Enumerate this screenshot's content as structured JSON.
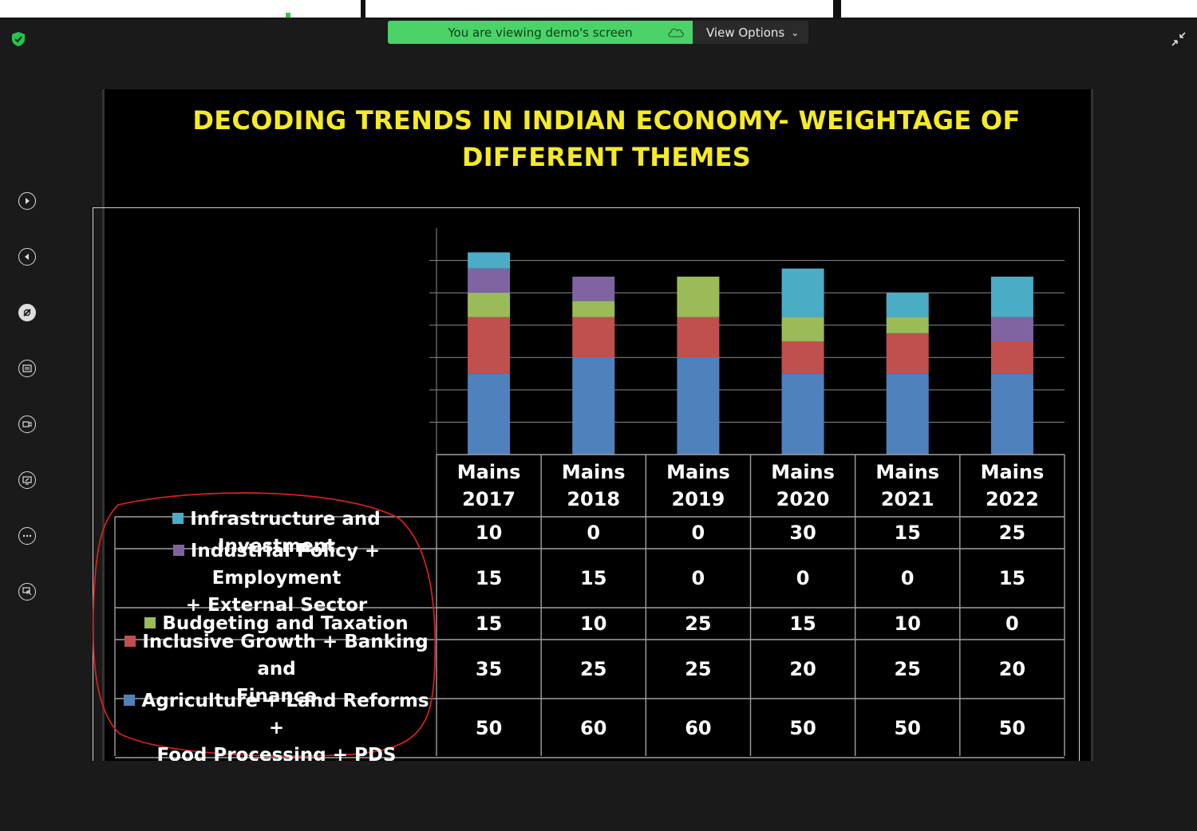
{
  "banner": {
    "text": "You are viewing demo's screen",
    "view_options": "View Options"
  },
  "toolbar_icons": [
    "play-icon",
    "rewind-icon",
    "annotate-icon",
    "chat-icon",
    "record-icon",
    "share-icon",
    "more-icon",
    "remote-control-icon"
  ],
  "slide": {
    "title_line1": "DECODING TRENDS IN INDIAN ECONOMY- WEIGHTAGE OF",
    "title_line2": "DIFFERENT THEMES"
  },
  "colors": {
    "infrastructure": "#4bacc6",
    "industrial": "#8064a2",
    "budgeting": "#9bbb59",
    "inclusive": "#c0504d",
    "agriculture": "#4f81bd",
    "annotation": "#d02020",
    "title": "#f5ea29"
  },
  "chart_data": {
    "type": "bar",
    "stacked": true,
    "categories": [
      "Mains 2017",
      "Mains 2018",
      "Mains 2019",
      "Mains 2020",
      "Mains 2021",
      "Mains 2022"
    ],
    "category_lines": [
      [
        "Mains",
        "2017"
      ],
      [
        "Mains",
        "2018"
      ],
      [
        "Mains",
        "2019"
      ],
      [
        "Mains",
        "2020"
      ],
      [
        "Mains",
        "2021"
      ],
      [
        "Mains",
        "2022"
      ]
    ],
    "ylim": [
      0,
      140
    ],
    "grid": true,
    "series": [
      {
        "name": "Infrastructure and Investment",
        "name_lines": [
          "Infrastructure and Investment"
        ],
        "color": "#4bacc6",
        "values": [
          10,
          0,
          0,
          30,
          15,
          25
        ]
      },
      {
        "name": "Industrial Policy + Employment + External Sector",
        "name_lines": [
          "Industrial Policy + Employment",
          "+ External Sector"
        ],
        "color": "#8064a2",
        "values": [
          15,
          15,
          0,
          0,
          0,
          15
        ]
      },
      {
        "name": "Budgeting and Taxation",
        "name_lines": [
          "Budgeting and Taxation"
        ],
        "color": "#9bbb59",
        "values": [
          15,
          10,
          25,
          15,
          10,
          0
        ]
      },
      {
        "name": "Inclusive Growth + Banking and Finance",
        "name_lines": [
          "Inclusive Growth + Banking and",
          "Finance"
        ],
        "color": "#c0504d",
        "values": [
          35,
          25,
          25,
          20,
          25,
          20
        ]
      },
      {
        "name": "Agriculture + Land Reforms + Food Processing + PDS",
        "name_lines": [
          "Agriculture + Land Reforms  +",
          "Food Processing + PDS"
        ],
        "color": "#4f81bd",
        "values": [
          50,
          60,
          60,
          50,
          50,
          50
        ]
      }
    ],
    "stack_order": [
      "Agriculture + Land Reforms + Food Processing + PDS",
      "Inclusive Growth + Banking and Finance",
      "Budgeting and Taxation",
      "Industrial Policy + Employment + External Sector",
      "Infrastructure and Investment"
    ],
    "legend": "data table"
  }
}
